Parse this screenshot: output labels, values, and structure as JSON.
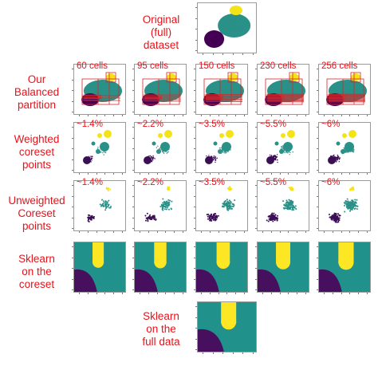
{
  "rows": [
    {
      "id": "original",
      "label": "Original (full) dataset",
      "lines": [
        "Original",
        "(full)",
        "dataset"
      ]
    },
    {
      "id": "partition",
      "label": "Our Balanced partition",
      "lines": [
        "Our",
        "Balanced",
        "partition"
      ]
    },
    {
      "id": "weighted",
      "label": "Weighted coreset points",
      "lines": [
        "Weighted",
        "coreset",
        "points"
      ]
    },
    {
      "id": "unweighted",
      "label": "Unweighted Coreset points",
      "lines": [
        "Unweighted",
        "Coreset",
        "points"
      ]
    },
    {
      "id": "sklearn_coreset",
      "label": "Sklearn on the coreset",
      "lines": [
        "Sklearn",
        "on the",
        "coreset"
      ]
    },
    {
      "id": "sklearn_full",
      "label": "Sklearn on the full data",
      "lines": [
        "Sklearn",
        "on the",
        "full data"
      ]
    }
  ],
  "partition_labels": [
    "60 cells",
    "95 cells",
    "150 cells",
    "230 cells",
    "256 cells"
  ],
  "coreset_sizes": [
    "~1.4%",
    "~2.2%",
    "~3.5%",
    "~5.5%",
    "~6%"
  ],
  "colors": {
    "label_red": "#e8121a",
    "cluster_yellow": "#f4e316",
    "cluster_teal": "#2a9188",
    "cluster_purple": "#3b0f55",
    "cluster_dark": "#440154",
    "region_teal": "#21918c",
    "region_yellow": "#fde725",
    "region_purple": "#46105f",
    "grid_red": "#d62728"
  }
}
